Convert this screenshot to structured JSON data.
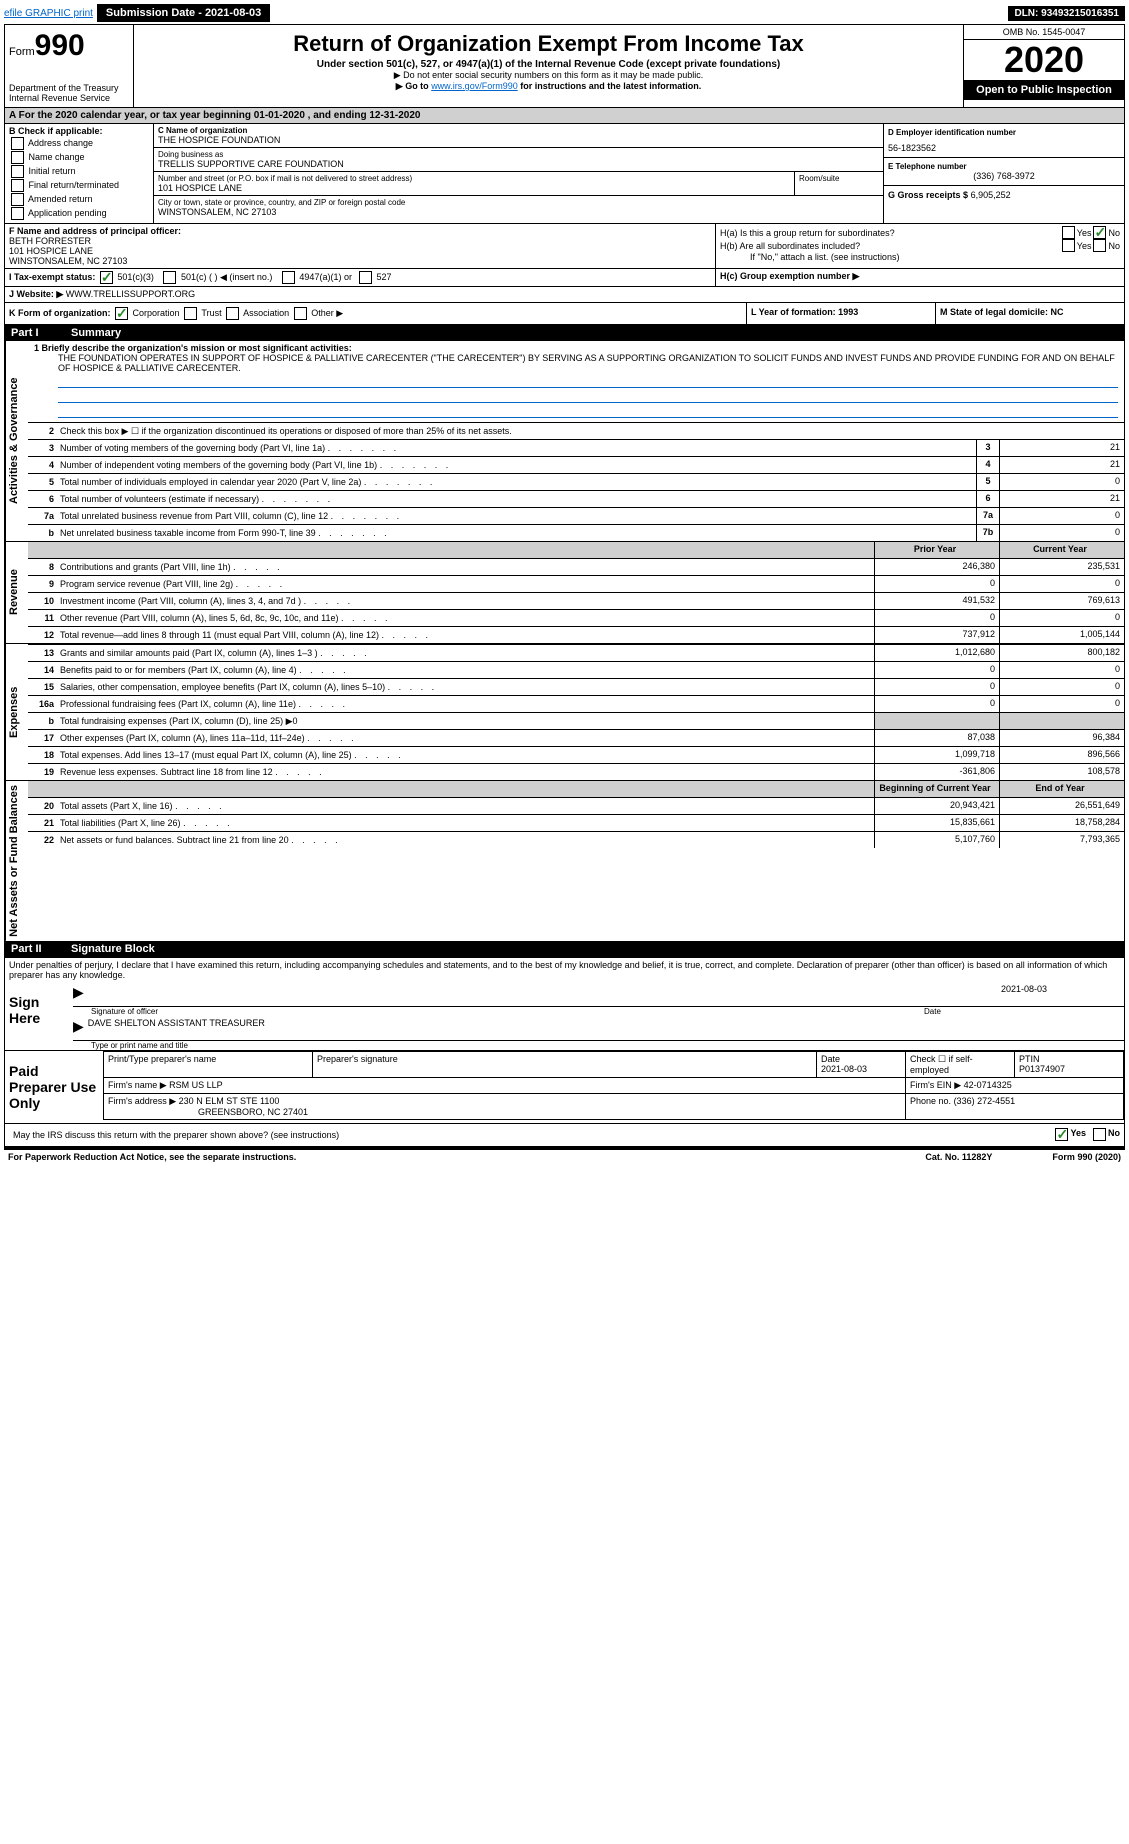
{
  "topbar": {
    "efile_link": "efile GRAPHIC print",
    "submission_label": "Submission Date - 2021-08-03",
    "dln": "DLN: 93493215016351"
  },
  "header": {
    "form_label": "Form",
    "form_number": "990",
    "dept": "Department of the Treasury",
    "irs": "Internal Revenue Service",
    "title": "Return of Organization Exempt From Income Tax",
    "subtitle": "Under section 501(c), 527, or 4947(a)(1) of the Internal Revenue Code (except private foundations)",
    "note1": "▶ Do not enter social security numbers on this form as it may be made public.",
    "note2_pre": "▶ Go to ",
    "note2_link": "www.irs.gov/Form990",
    "note2_post": " for instructions and the latest information.",
    "omb": "OMB No. 1545-0047",
    "year": "2020",
    "open": "Open to Public Inspection"
  },
  "A": {
    "text": "For the 2020 calendar year, or tax year beginning 01-01-2020    , and ending 12-31-2020"
  },
  "B": {
    "label": "B Check if applicable:",
    "items": [
      "Address change",
      "Name change",
      "Initial return",
      "Final return/terminated",
      "Amended return",
      "Application pending"
    ]
  },
  "C": {
    "name_label": "C Name of organization",
    "name": "THE HOSPICE FOUNDATION",
    "dba_label": "Doing business as",
    "dba": "TRELLIS SUPPORTIVE CARE FOUNDATION",
    "street_label": "Number and street (or P.O. box if mail is not delivered to street address)",
    "street": "101 HOSPICE LANE",
    "room_label": "Room/suite",
    "city_label": "City or town, state or province, country, and ZIP or foreign postal code",
    "city": "WINSTONSALEM, NC  27103"
  },
  "D": {
    "label": "D Employer identification number",
    "val": "56-1823562"
  },
  "E": {
    "label": "E Telephone number",
    "val": "(336) 768-3972"
  },
  "G": {
    "label": "G Gross receipts $",
    "val": "6,905,252"
  },
  "F": {
    "label": "F Name and address of principal officer:",
    "name": "BETH FORRESTER",
    "addr1": "101 HOSPICE LANE",
    "addr2": "WINSTONSALEM, NC  27103"
  },
  "H": {
    "a": "H(a)  Is this a group return for subordinates?",
    "b": "H(b)  Are all subordinates included?",
    "attach": "If \"No,\" attach a list. (see instructions)",
    "c": "H(c)  Group exemption number ▶",
    "yes": "Yes",
    "no": "No"
  },
  "I": {
    "label": "I  Tax-exempt status:",
    "opt1": "501(c)(3)",
    "opt2": "501(c) (   ) ◀ (insert no.)",
    "opt3": "4947(a)(1) or",
    "opt4": "527"
  },
  "J": {
    "label": "J  Website: ▶",
    "val": "WWW.TRELLISSUPPORT.ORG"
  },
  "K": {
    "label": "K Form of organization:",
    "opts": [
      "Corporation",
      "Trust",
      "Association",
      "Other ▶"
    ]
  },
  "L": {
    "label": "L Year of formation: 1993"
  },
  "M": {
    "label": "M State of legal domicile: NC"
  },
  "summary": {
    "part": "Part I",
    "title": "Summary",
    "line1_label": "1  Briefly describe the organization's mission or most significant activities:",
    "mission": "THE FOUNDATION OPERATES IN SUPPORT OF HOSPICE & PALLIATIVE CARECENTER (\"THE CARECENTER\") BY SERVING AS A SUPPORTING ORGANIZATION TO SOLICIT FUNDS AND INVEST FUNDS AND PROVIDE FUNDING FOR AND ON BEHALF OF HOSPICE & PALLIATIVE CARECENTER.",
    "line2": "Check this box ▶ ☐ if the organization discontinued its operations or disposed of more than 25% of its net assets.",
    "sect_gov": "Activities & Governance",
    "sect_rev": "Revenue",
    "sect_exp": "Expenses",
    "sect_net": "Net Assets or Fund Balances",
    "prior_year": "Prior Year",
    "current_year": "Current Year",
    "begin_year": "Beginning of Current Year",
    "end_year": "End of Year",
    "rows_gov": [
      {
        "n": "3",
        "d": "Number of voting members of the governing body (Part VI, line 1a)",
        "box": "3",
        "v": "21"
      },
      {
        "n": "4",
        "d": "Number of independent voting members of the governing body (Part VI, line 1b)",
        "box": "4",
        "v": "21"
      },
      {
        "n": "5",
        "d": "Total number of individuals employed in calendar year 2020 (Part V, line 2a)",
        "box": "5",
        "v": "0"
      },
      {
        "n": "6",
        "d": "Total number of volunteers (estimate if necessary)",
        "box": "6",
        "v": "21"
      },
      {
        "n": "7a",
        "d": "Total unrelated business revenue from Part VIII, column (C), line 12",
        "box": "7a",
        "v": "0"
      },
      {
        "n": "b",
        "d": "Net unrelated business taxable income from Form 990-T, line 39",
        "box": "7b",
        "v": "0"
      }
    ],
    "rows_rev": [
      {
        "n": "8",
        "d": "Contributions and grants (Part VIII, line 1h)",
        "p": "246,380",
        "c": "235,531"
      },
      {
        "n": "9",
        "d": "Program service revenue (Part VIII, line 2g)",
        "p": "0",
        "c": "0"
      },
      {
        "n": "10",
        "d": "Investment income (Part VIII, column (A), lines 3, 4, and 7d )",
        "p": "491,532",
        "c": "769,613"
      },
      {
        "n": "11",
        "d": "Other revenue (Part VIII, column (A), lines 5, 6d, 8c, 9c, 10c, and 11e)",
        "p": "0",
        "c": "0"
      },
      {
        "n": "12",
        "d": "Total revenue—add lines 8 through 11 (must equal Part VIII, column (A), line 12)",
        "p": "737,912",
        "c": "1,005,144"
      }
    ],
    "rows_exp": [
      {
        "n": "13",
        "d": "Grants and similar amounts paid (Part IX, column (A), lines 1–3 )",
        "p": "1,012,680",
        "c": "800,182"
      },
      {
        "n": "14",
        "d": "Benefits paid to or for members (Part IX, column (A), line 4)",
        "p": "0",
        "c": "0"
      },
      {
        "n": "15",
        "d": "Salaries, other compensation, employee benefits (Part IX, column (A), lines 5–10)",
        "p": "0",
        "c": "0"
      },
      {
        "n": "16a",
        "d": "Professional fundraising fees (Part IX, column (A), line 11e)",
        "p": "0",
        "c": "0"
      },
      {
        "n": "b",
        "d": "Total fundraising expenses (Part IX, column (D), line 25) ▶0",
        "p": "",
        "c": "",
        "nobox": true
      },
      {
        "n": "17",
        "d": "Other expenses (Part IX, column (A), lines 11a–11d, 11f–24e)",
        "p": "87,038",
        "c": "96,384"
      },
      {
        "n": "18",
        "d": "Total expenses. Add lines 13–17 (must equal Part IX, column (A), line 25)",
        "p": "1,099,718",
        "c": "896,566"
      },
      {
        "n": "19",
        "d": "Revenue less expenses. Subtract line 18 from line 12",
        "p": "-361,806",
        "c": "108,578"
      }
    ],
    "rows_net": [
      {
        "n": "20",
        "d": "Total assets (Part X, line 16)",
        "p": "20,943,421",
        "c": "26,551,649"
      },
      {
        "n": "21",
        "d": "Total liabilities (Part X, line 26)",
        "p": "15,835,661",
        "c": "18,758,284"
      },
      {
        "n": "22",
        "d": "Net assets or fund balances. Subtract line 21 from line 20",
        "p": "5,107,760",
        "c": "7,793,365"
      }
    ]
  },
  "sig": {
    "part": "Part II",
    "title": "Signature Block",
    "penalties": "Under penalties of perjury, I declare that I have examined this return, including accompanying schedules and statements, and to the best of my knowledge and belief, it is true, correct, and complete. Declaration of preparer (other than officer) is based on all information of which preparer has any knowledge.",
    "sign_here": "Sign Here",
    "sig_officer": "Signature of officer",
    "sig_date": "2021-08-03",
    "name_title": "DAVE SHELTON  ASSISTANT TREASURER",
    "type_name": "Type or print name and title",
    "paid": "Paid Preparer Use Only",
    "prep_name_label": "Print/Type preparer's name",
    "prep_sig_label": "Preparer's signature",
    "date_label": "Date",
    "date_val": "2021-08-03",
    "check_label": "Check ☐ if self-employed",
    "ptin_label": "PTIN",
    "ptin": "P01374907",
    "firm_name_label": "Firm's name    ▶",
    "firm_name": "RSM US LLP",
    "firm_ein_label": "Firm's EIN ▶",
    "firm_ein": "42-0714325",
    "firm_addr_label": "Firm's address ▶",
    "firm_addr1": "230 N ELM ST STE 1100",
    "firm_addr2": "GREENSBORO, NC  27401",
    "phone_label": "Phone no.",
    "phone": "(336) 272-4551",
    "discuss": "May the IRS discuss this return with the preparer shown above? (see instructions)",
    "yes": "Yes",
    "no": "No"
  },
  "footer": {
    "left": "For Paperwork Reduction Act Notice, see the separate instructions.",
    "center": "Cat. No. 11282Y",
    "right": "Form 990 (2020)"
  }
}
